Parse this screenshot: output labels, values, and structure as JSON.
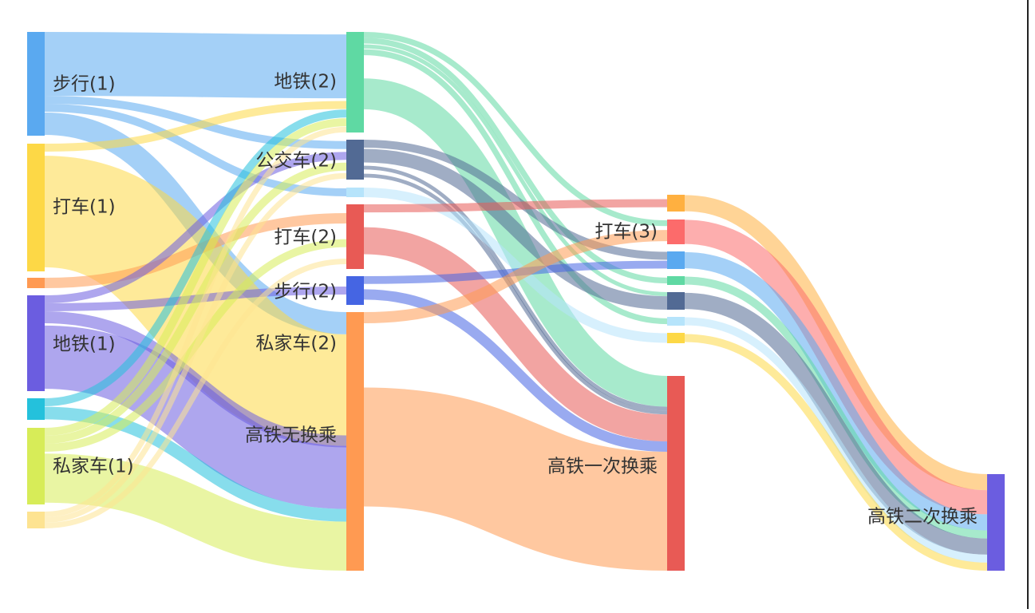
{
  "nodes": [
    {
      "id": "w1",
      "label": "步行(1)",
      "color": "#5aa9f0"
    },
    {
      "id": "t1",
      "label": "打车(1)",
      "color": "#fdd846"
    },
    {
      "id": "o1",
      "label": "",
      "color": "#ff9a52"
    },
    {
      "id": "m1",
      "label": "地铁(1)",
      "color": "#6b5de0"
    },
    {
      "id": "c1",
      "label": "",
      "color": "#24c1dc"
    },
    {
      "id": "p1",
      "label": "私家车(1)",
      "color": "#d7ec58"
    },
    {
      "id": "y1",
      "label": "",
      "color": "#fde391"
    },
    {
      "id": "m2",
      "label": "地铁(2)",
      "color": "#5fd9a3"
    },
    {
      "id": "b2",
      "label": "公交车(2)",
      "color": "#526a94"
    },
    {
      "id": "lb2",
      "label": "",
      "color": "#b6e4fb"
    },
    {
      "id": "t2",
      "label": "打车(2)",
      "color": "#e85a55"
    },
    {
      "id": "w2",
      "label": "步行(2)",
      "color": "#4565e3"
    },
    {
      "id": "p2",
      "label": "私家车(2)",
      "color": "#ff9a52"
    },
    {
      "id": "hsr0",
      "label": "高铁无换乘",
      "color": "#ff9a52"
    },
    {
      "id": "a3",
      "label": "",
      "color": "#ffb040"
    },
    {
      "id": "t3",
      "label": "打车(3)",
      "color": "#fc6b6b"
    },
    {
      "id": "b3",
      "label": "",
      "color": "#5aa9f0"
    },
    {
      "id": "g3",
      "label": "",
      "color": "#5fd9a3"
    },
    {
      "id": "n3",
      "label": "",
      "color": "#526a94"
    },
    {
      "id": "l3",
      "label": "",
      "color": "#b6e4fb"
    },
    {
      "id": "y3",
      "label": "",
      "color": "#fdd846"
    },
    {
      "id": "hsr1",
      "label": "高铁一次换乘",
      "color": "#e85a55"
    },
    {
      "id": "hsr2",
      "label": "高铁二次换乘",
      "color": "#6b5de0"
    }
  ],
  "links": [
    {
      "source": "w1",
      "target": "m2",
      "value": 8.0
    },
    {
      "source": "w1",
      "target": "b2",
      "value": 1.0
    },
    {
      "source": "w1",
      "target": "lb2",
      "value": 1.0
    },
    {
      "source": "w1",
      "target": "hsr0",
      "value": 3.0
    },
    {
      "source": "t1",
      "target": "m2",
      "value": 1.0
    },
    {
      "source": "t1",
      "target": "hsr0",
      "value": 15.0
    },
    {
      "source": "o1",
      "target": "t2",
      "value": 1.3
    },
    {
      "source": "m1",
      "target": "b2",
      "value": 1.0
    },
    {
      "source": "m1",
      "target": "w2",
      "value": 1.0
    },
    {
      "source": "m1",
      "target": "p2",
      "value": 1.5
    },
    {
      "source": "m1",
      "target": "hsr0",
      "value": 8.5
    },
    {
      "source": "c1",
      "target": "m2",
      "value": 1.0
    },
    {
      "source": "c1",
      "target": "hsr0",
      "value": 1.7
    },
    {
      "source": "p1",
      "target": "m2",
      "value": 1.0
    },
    {
      "source": "p1",
      "target": "b2",
      "value": 1.0
    },
    {
      "source": "p1",
      "target": "t2",
      "value": 1.0
    },
    {
      "source": "p1",
      "target": "hsr0",
      "value": 6.6
    },
    {
      "source": "y1",
      "target": "m2",
      "value": 0.7
    },
    {
      "source": "y1",
      "target": "b2",
      "value": 0.7
    },
    {
      "source": "y1",
      "target": "t2",
      "value": 0.7
    },
    {
      "source": "m2",
      "target": "t3",
      "value": 0.6
    },
    {
      "source": "m2",
      "target": "g3",
      "value": 0.6
    },
    {
      "source": "m2",
      "target": "n3",
      "value": 0.6
    },
    {
      "source": "m2",
      "target": "l3",
      "value": 0.6
    },
    {
      "source": "m2",
      "target": "hsr1",
      "value": 8.0
    },
    {
      "source": "b2",
      "target": "b3",
      "value": 1.0
    },
    {
      "source": "b2",
      "target": "n3",
      "value": 2.0
    },
    {
      "source": "b2",
      "target": "hsr1",
      "value": 1.0
    },
    {
      "source": "b2",
      "target": "hsr1",
      "value": 1.0
    },
    {
      "source": "lb2",
      "target": "y3",
      "value": 1.2
    },
    {
      "source": "t2",
      "target": "a3",
      "value": 1.0
    },
    {
      "source": "t2",
      "target": "hsr1",
      "value": 7.0
    },
    {
      "source": "w2",
      "target": "b3",
      "value": 1.0
    },
    {
      "source": "w2",
      "target": "hsr1",
      "value": 2.7
    },
    {
      "source": "p2",
      "target": "t3",
      "value": 1.4
    },
    {
      "source": "p2",
      "target": "hsr1",
      "value": 30.9
    },
    {
      "source": "a3",
      "target": "hsr2",
      "value": 2.0
    },
    {
      "source": "t3",
      "target": "hsr2",
      "value": 3.0
    },
    {
      "source": "b3",
      "target": "hsr2",
      "value": 2.0
    },
    {
      "source": "g3",
      "target": "hsr2",
      "value": 1.0
    },
    {
      "source": "n3",
      "target": "hsr2",
      "value": 2.0
    },
    {
      "source": "l3",
      "target": "hsr2",
      "value": 1.0
    },
    {
      "source": "y3",
      "target": "hsr2",
      "value": 1.0
    }
  ]
}
